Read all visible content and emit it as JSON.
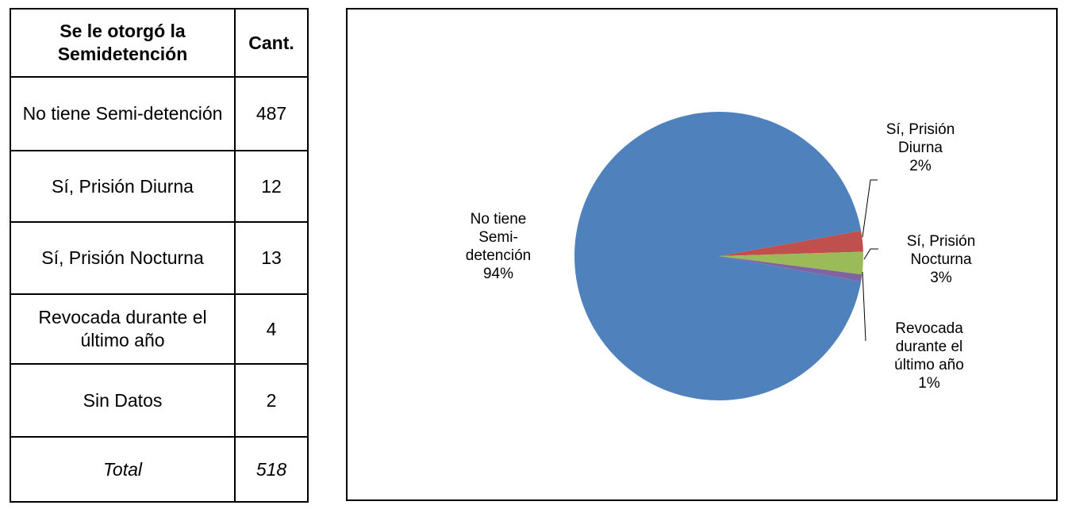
{
  "table": {
    "header_category": "Se le otorgó la Semidetención",
    "header_qty": "Cant.",
    "rows": [
      {
        "label": "No tiene Semi-detención",
        "qty": "487"
      },
      {
        "label": "Sí, Prisión Diurna",
        "qty": "12"
      },
      {
        "label": "Sí, Prisión Nocturna",
        "qty": "13"
      },
      {
        "label": "Revocada durante el último año",
        "qty": "4"
      },
      {
        "label": "Sin Datos",
        "qty": "2"
      }
    ],
    "total_label": "Total",
    "total_qty": "518"
  },
  "chart_data": {
    "type": "pie",
    "title": "",
    "slices": [
      {
        "label": "No tiene Semi-detención",
        "value": 487,
        "percent_label": "94%",
        "color": "#4F81BD"
      },
      {
        "label": "Sí, Prisión Diurna",
        "value": 12,
        "percent_label": "2%",
        "color": "#C0504D"
      },
      {
        "label": "Sí, Prisión Nocturna",
        "value": 13,
        "percent_label": "3%",
        "color": "#9BBB59"
      },
      {
        "label": "Revocada durante el último año",
        "value": 4,
        "percent_label": "1%",
        "color": "#8064A2"
      }
    ],
    "data_labels": [
      {
        "lines": [
          "No tiene",
          "Semi-",
          "detención",
          "94%"
        ]
      },
      {
        "lines": [
          "Sí, Prisión",
          "Diurna",
          "2%"
        ]
      },
      {
        "lines": [
          "Sí, Prisión",
          "Nocturna",
          "3%"
        ]
      },
      {
        "lines": [
          "Revocada",
          "durante el",
          "último año",
          "1%"
        ]
      }
    ],
    "legend": "none"
  }
}
